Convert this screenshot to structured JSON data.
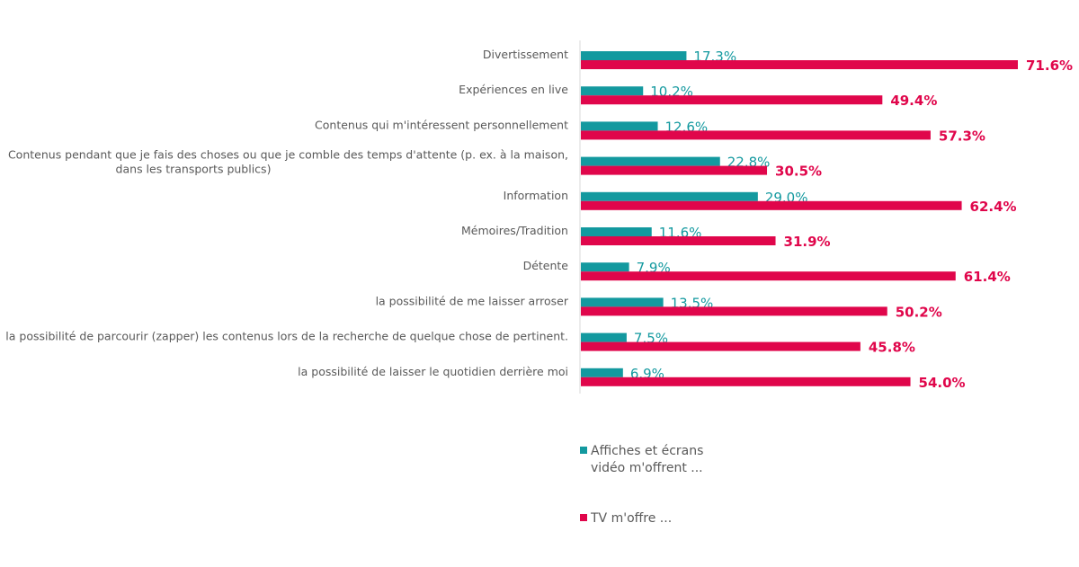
{
  "chart_data": {
    "type": "bar",
    "orientation": "horizontal",
    "title": "",
    "xlabel": "",
    "ylabel": "",
    "xlim": [
      0,
      80
    ],
    "grid": false,
    "legend_position": "bottom",
    "value_format": "percent_1dp",
    "categories": [
      "Divertissement",
      "Expériences en live",
      "Contenus qui m'intéressent personnellement",
      "Contenus pendant que je fais des choses ou que je comble des temps d'attente (p. ex. à la maison, dans les transports publics)",
      "Information",
      "Mémoires/Tradition",
      "Détente",
      "la possibilité de me laisser arroser",
      "la possibilité de parcourir (zapper) les contenus lors de la recherche de quelque chose de pertinent.",
      "la possibilité de laisser le quotidien derrière moi"
    ],
    "category_lines": [
      [
        "Divertissement"
      ],
      [
        "Expériences en live"
      ],
      [
        "Contenus qui m'intéressent personnellement"
      ],
      [
        "Contenus pendant que je fais des choses ou que je comble des temps d'attente (p. ex. à la maison,",
        "dans les transports publics)"
      ],
      [
        "Information"
      ],
      [
        "Mémoires/Tradition"
      ],
      [
        "Détente"
      ],
      [
        "la possibilité de me laisser arroser"
      ],
      [
        "la possibilité de parcourir (zapper) les contenus lors de la recherche de quelque chose de pertinent."
      ],
      [
        "la possibilité de laisser le quotidien derrière moi"
      ]
    ],
    "series": [
      {
        "name": "Affiches et écrans vidéo m'offrent ...",
        "legend_lines": [
          "Affiches et écrans",
          "vidéo m'offrent ..."
        ],
        "color": "#13999f",
        "values": [
          17.3,
          10.2,
          12.6,
          22.8,
          29.0,
          11.6,
          7.9,
          13.5,
          7.5,
          6.9
        ],
        "labels": [
          "17.3%",
          "10.2%",
          "12.6%",
          "22.8%",
          "29.0%",
          "11.6%",
          "7.9%",
          "13.5%",
          "7.5%",
          "6.9%"
        ]
      },
      {
        "name": "TV m'offre ...",
        "legend_lines": [
          "TV m'offre ..."
        ],
        "color": "#e0064b",
        "values": [
          71.6,
          49.4,
          57.3,
          30.5,
          62.4,
          31.9,
          61.4,
          50.2,
          45.8,
          54.0
        ],
        "labels": [
          "71.6%",
          "49.4%",
          "57.3%",
          "30.5%",
          "62.4%",
          "31.9%",
          "61.4%",
          "50.2%",
          "45.8%",
          "54.0%"
        ]
      }
    ]
  },
  "legend": {
    "items": [
      {
        "line1": "Affiches et écrans",
        "line2": "vidéo m'offrent ..."
      },
      {
        "line1": "TV m'offre ..."
      }
    ]
  }
}
